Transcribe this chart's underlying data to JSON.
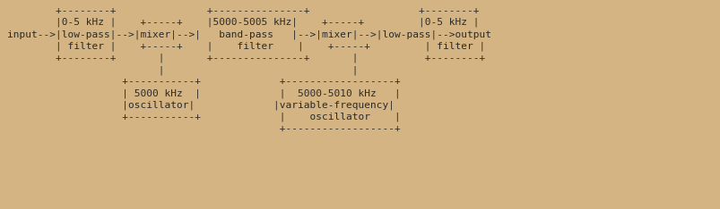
{
  "background_color": "#d4b483",
  "text_color": "#2a2a2a",
  "font_family": "monospace",
  "font_size": 8.0,
  "ascii_art": "        +--------+               +---------------+                  +--------+\n        |0-5 kHz |    +-----+    |5000-5005 kHz|    +-----+         |0-5 kHz |\ninput-->|low-pass|-->|mixer|-->|   band-pass   |-->|mixer|-->|low-pass|-->output\n        | filter |    +-----+    |    filter    |    +-----+         | filter |\n        +--------+       |       +---------------+       |           +--------+\n                         |                               |\n                   +-----------+             +------------------+\n                   | 5000 kHz  |             |  5000-5010 kHz   |\n                   |oscillator|             |variable-frequency|\n                   +-----------+             |    oscillator    |\n                                             +------------------+"
}
